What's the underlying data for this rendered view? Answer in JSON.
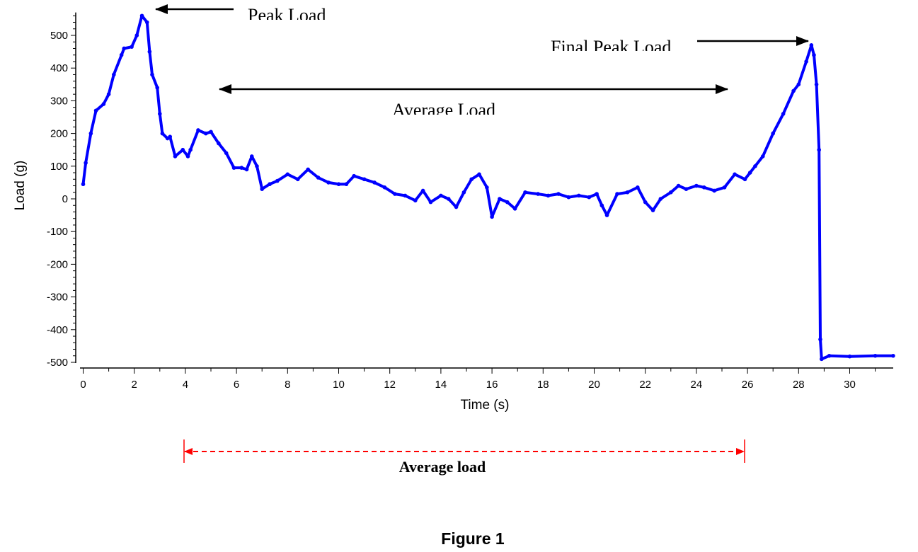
{
  "chart_data": {
    "type": "line",
    "title": "",
    "caption": "Figure 1",
    "xlabel": "Time (s)",
    "ylabel": "Load (g)",
    "xlim": [
      -0.3,
      31.8
    ],
    "ylim": [
      -520,
      570
    ],
    "xticks": [
      0,
      2,
      4,
      6,
      8,
      10,
      12,
      14,
      16,
      18,
      20,
      22,
      24,
      26,
      28,
      30
    ],
    "yticks": [
      -500,
      -400,
      -300,
      -200,
      -100,
      0,
      100,
      200,
      300,
      400,
      500
    ],
    "grid": false,
    "series_color": "#0000ff",
    "series": [
      {
        "name": "Load",
        "x": [
          0,
          0.1,
          0.3,
          0.5,
          0.8,
          1.0,
          1.2,
          1.5,
          1.6,
          1.9,
          2.1,
          2.3,
          2.5,
          2.6,
          2.7,
          2.9,
          3.0,
          3.1,
          3.3,
          3.4,
          3.6,
          3.9,
          4.1,
          4.2,
          4.5,
          4.8,
          5.0,
          5.3,
          5.6,
          5.9,
          6.2,
          6.4,
          6.6,
          6.8,
          7.0,
          7.3,
          7.6,
          8.0,
          8.4,
          8.8,
          9.2,
          9.6,
          10.0,
          10.3,
          10.6,
          11.0,
          11.4,
          11.8,
          12.2,
          12.6,
          13.0,
          13.3,
          13.6,
          14.0,
          14.3,
          14.6,
          14.9,
          15.2,
          15.5,
          15.8,
          16.0,
          16.3,
          16.6,
          16.9,
          17.3,
          17.8,
          18.2,
          18.6,
          19.0,
          19.4,
          19.8,
          20.1,
          20.3,
          20.5,
          20.9,
          21.3,
          21.7,
          22.0,
          22.3,
          22.6,
          23.0,
          23.3,
          23.6,
          24.0,
          24.3,
          24.7,
          25.1,
          25.5,
          25.9,
          26.1,
          26.3,
          26.6,
          27.0,
          27.4,
          27.8,
          28.0,
          28.3,
          28.5,
          28.6,
          28.7,
          28.8,
          28.85,
          28.9,
          29.2,
          30.0,
          31.0,
          31.7
        ],
        "y": [
          45,
          110,
          200,
          270,
          290,
          320,
          380,
          440,
          460,
          465,
          500,
          560,
          540,
          450,
          380,
          340,
          260,
          200,
          185,
          190,
          130,
          150,
          130,
          150,
          210,
          200,
          205,
          170,
          140,
          95,
          95,
          90,
          130,
          100,
          30,
          45,
          55,
          75,
          60,
          90,
          65,
          50,
          45,
          45,
          70,
          60,
          50,
          35,
          15,
          10,
          -5,
          25,
          -10,
          10,
          0,
          -25,
          20,
          60,
          75,
          35,
          -55,
          0,
          -10,
          -30,
          20,
          15,
          10,
          15,
          5,
          10,
          5,
          15,
          -20,
          -50,
          15,
          20,
          35,
          -10,
          -35,
          0,
          20,
          40,
          30,
          40,
          35,
          25,
          35,
          75,
          60,
          80,
          100,
          130,
          200,
          260,
          330,
          350,
          420,
          470,
          440,
          350,
          150,
          -430,
          -490,
          -480,
          -482,
          -480,
          -480
        ]
      }
    ],
    "annotations": {
      "peak_load": "Peak Load",
      "average_load_top": "Average Load",
      "final_peak_load": "Final Peak Load",
      "average_load_bottom": "Average load"
    },
    "annotation_color_bottom": "#ff0000"
  }
}
